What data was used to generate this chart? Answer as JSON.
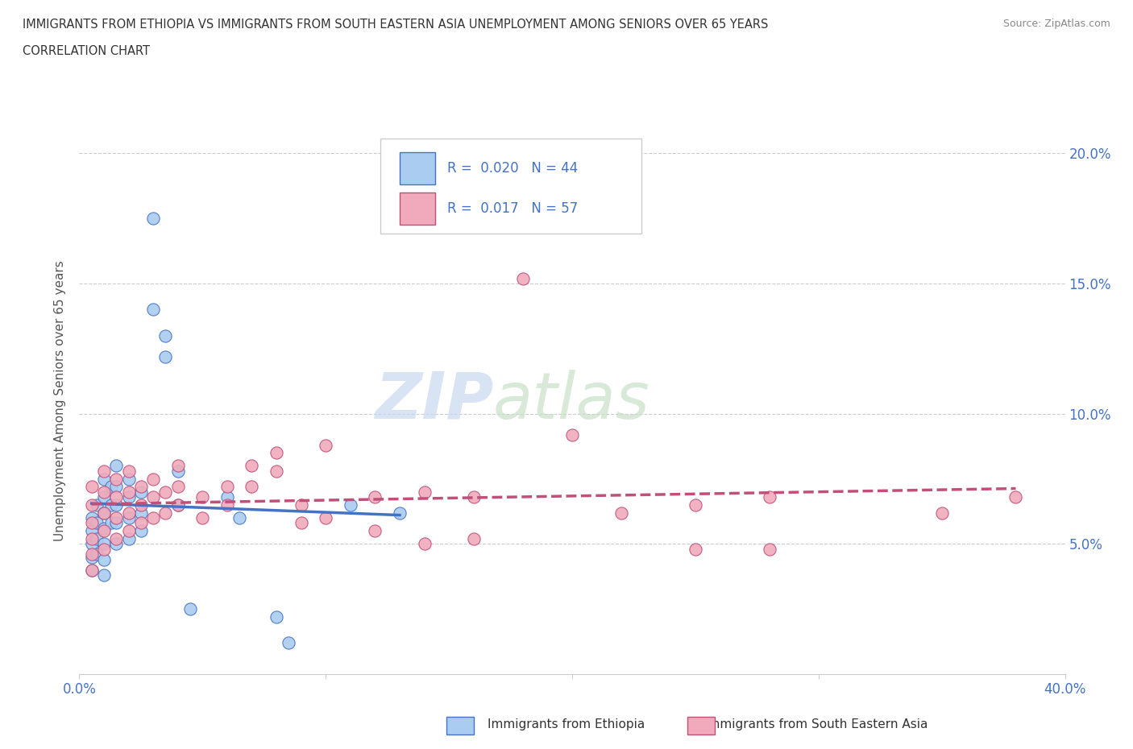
{
  "title_line1": "IMMIGRANTS FROM ETHIOPIA VS IMMIGRANTS FROM SOUTH EASTERN ASIA UNEMPLOYMENT AMONG SENIORS OVER 65 YEARS",
  "title_line2": "CORRELATION CHART",
  "source": "Source: ZipAtlas.com",
  "ylabel": "Unemployment Among Seniors over 65 years",
  "xlim": [
    0.0,
    0.4
  ],
  "ylim": [
    0.0,
    0.21
  ],
  "x_tick_vals": [
    0.0,
    0.1,
    0.2,
    0.3,
    0.4
  ],
  "x_tick_labels": [
    "0.0%",
    "",
    "",
    "",
    "40.0%"
  ],
  "y_tick_vals": [
    0.05,
    0.1,
    0.15,
    0.2
  ],
  "y_tick_labels_right": [
    "5.0%",
    "10.0%",
    "15.0%",
    "20.0%"
  ],
  "R_ethiopia": 0.02,
  "N_ethiopia": 44,
  "R_sea": 0.017,
  "N_sea": 57,
  "color_ethiopia": "#aaccf0",
  "color_sea": "#f0aabb",
  "line_color_ethiopia": "#4472c4",
  "line_color_sea": "#c0507a",
  "watermark_zip": "ZIP",
  "watermark_atlas": "atlas",
  "background_color": "#ffffff",
  "ethiopia_x": [
    0.005,
    0.005,
    0.005,
    0.005,
    0.005,
    0.007,
    0.007,
    0.007,
    0.007,
    0.01,
    0.01,
    0.01,
    0.01,
    0.01,
    0.01,
    0.01,
    0.013,
    0.013,
    0.013,
    0.015,
    0.015,
    0.015,
    0.015,
    0.015,
    0.02,
    0.02,
    0.02,
    0.02,
    0.025,
    0.025,
    0.025,
    0.03,
    0.03,
    0.035,
    0.035,
    0.04,
    0.04,
    0.045,
    0.06,
    0.065,
    0.08,
    0.085,
    0.11,
    0.13
  ],
  "ethiopia_y": [
    0.06,
    0.055,
    0.05,
    0.045,
    0.04,
    0.065,
    0.058,
    0.052,
    0.046,
    0.075,
    0.068,
    0.062,
    0.056,
    0.05,
    0.044,
    0.038,
    0.072,
    0.065,
    0.058,
    0.08,
    0.072,
    0.065,
    0.058,
    0.05,
    0.075,
    0.068,
    0.06,
    0.052,
    0.07,
    0.062,
    0.055,
    0.175,
    0.14,
    0.13,
    0.122,
    0.078,
    0.065,
    0.025,
    0.068,
    0.06,
    0.022,
    0.012,
    0.065,
    0.062
  ],
  "sea_x": [
    0.005,
    0.005,
    0.005,
    0.005,
    0.005,
    0.005,
    0.01,
    0.01,
    0.01,
    0.01,
    0.01,
    0.015,
    0.015,
    0.015,
    0.015,
    0.02,
    0.02,
    0.02,
    0.02,
    0.025,
    0.025,
    0.025,
    0.03,
    0.03,
    0.03,
    0.035,
    0.035,
    0.04,
    0.04,
    0.04,
    0.05,
    0.05,
    0.06,
    0.06,
    0.07,
    0.07,
    0.08,
    0.08,
    0.09,
    0.09,
    0.1,
    0.1,
    0.12,
    0.12,
    0.14,
    0.14,
    0.16,
    0.16,
    0.18,
    0.2,
    0.22,
    0.25,
    0.25,
    0.28,
    0.28,
    0.35,
    0.38
  ],
  "sea_y": [
    0.072,
    0.065,
    0.058,
    0.052,
    0.046,
    0.04,
    0.078,
    0.07,
    0.062,
    0.055,
    0.048,
    0.075,
    0.068,
    0.06,
    0.052,
    0.078,
    0.07,
    0.062,
    0.055,
    0.072,
    0.065,
    0.058,
    0.075,
    0.068,
    0.06,
    0.07,
    0.062,
    0.08,
    0.072,
    0.065,
    0.068,
    0.06,
    0.072,
    0.065,
    0.08,
    0.072,
    0.085,
    0.078,
    0.065,
    0.058,
    0.088,
    0.06,
    0.068,
    0.055,
    0.07,
    0.05,
    0.068,
    0.052,
    0.152,
    0.092,
    0.062,
    0.065,
    0.048,
    0.068,
    0.048,
    0.062,
    0.068
  ]
}
